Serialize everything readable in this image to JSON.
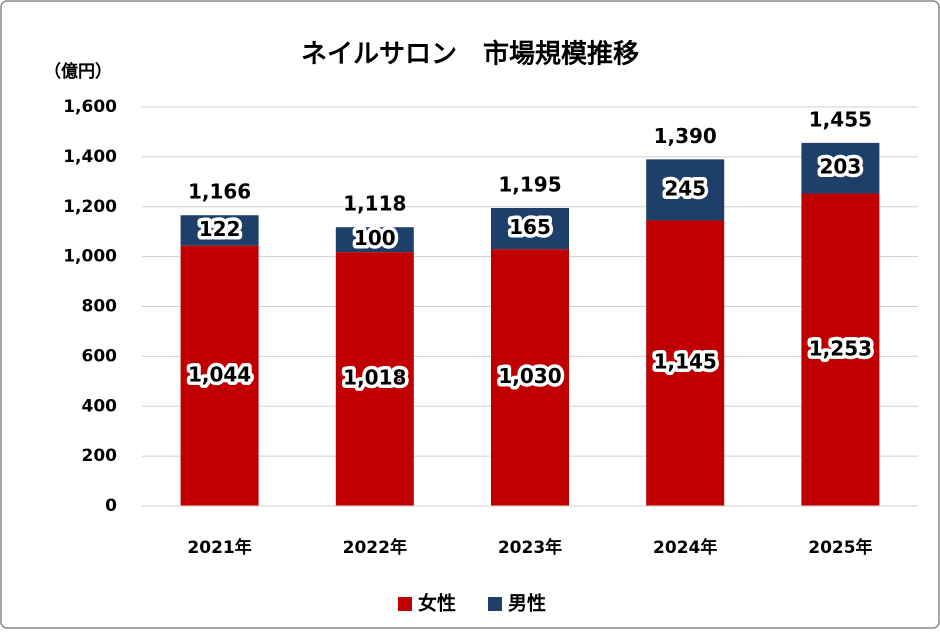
{
  "chart_data": {
    "type": "stacked-bar",
    "title": "ネイルサロン　市場規模推移",
    "y_unit": "（億円）",
    "categories": [
      "2021年",
      "2022年",
      "2023年",
      "2024年",
      "2025年"
    ],
    "series": [
      {
        "name": "女性",
        "color": "#c00000",
        "values": [
          1044,
          1018,
          1030,
          1145,
          1253
        ],
        "value_labels": [
          "1,044",
          "1,018",
          "1,030",
          "1,145",
          "1,253"
        ]
      },
      {
        "name": "男性",
        "color": "#1f3f6b",
        "values": [
          122,
          100,
          165,
          245,
          203
        ]
      }
    ],
    "totals": [
      1166,
      1118,
      1195,
      1390,
      1455
    ],
    "total_labels": [
      "1,166",
      "1,118",
      "1,195",
      "1,390",
      "1,455"
    ],
    "ylim": [
      0,
      1600
    ],
    "yticks": [
      0,
      200,
      400,
      600,
      800,
      {
        "value": 1000,
        "label": "1,000"
      },
      {
        "value": 1200,
        "label": "1,200"
      },
      {
        "value": 1400,
        "label": "1,400"
      },
      {
        "value": 1600,
        "label": "1,600"
      }
    ],
    "grid": true,
    "legend": "bottom"
  }
}
